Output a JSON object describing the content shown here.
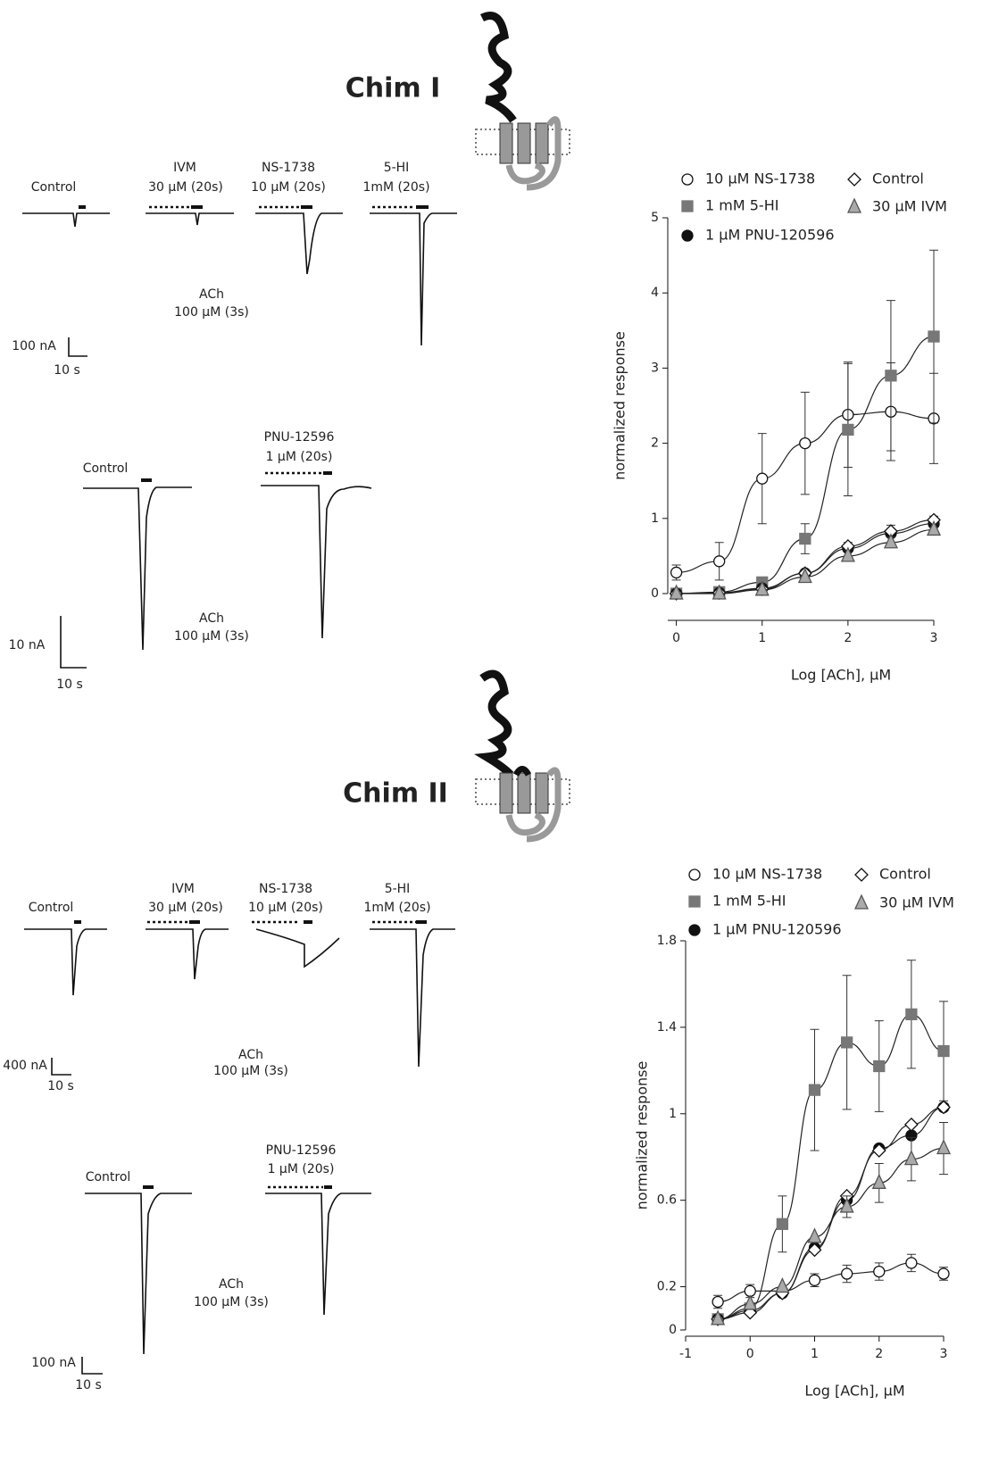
{
  "figure": {
    "sections": [
      {
        "texts": [
          "Chim I",
          "Control",
          "IVM",
          "30 µM (20s)",
          "NS-1738",
          "10 µM (20s)",
          "5-HI",
          "1mM (20s)",
          "ACh",
          "100 µM (3s)",
          "100 nA",
          "10 s",
          "Control",
          "PNU-12596",
          "1 µM (20s)",
          "ACh",
          "100 µM (3s)",
          "10 nA",
          "10 s"
        ]
      },
      {
        "texts": [
          "Chim II",
          "Control",
          "IVM",
          "30 µM (20s)",
          "NS-1738",
          "10 µM (20s)",
          "5-HI",
          "1mM (20s)",
          "ACh",
          "100 µM (3s)",
          "400 nA",
          "10 s",
          "Control",
          "PNU-12596",
          "1 µM (20s)",
          "ACh",
          "100 µM (3s)",
          "100 nA",
          "10 s"
        ]
      }
    ]
  },
  "chart_data": [
    {
      "type": "scatter",
      "xlabel": "Log [ACh],  µM",
      "ylabel": "normalized response",
      "x": [
        0,
        0.5,
        1,
        1.5,
        2,
        2.5,
        3
      ],
      "xlim": [
        -0.1,
        3
      ],
      "xticks": [
        0,
        1,
        2,
        3
      ],
      "ylim": [
        0,
        5
      ],
      "yticks": [
        0,
        1,
        2,
        3,
        4,
        5
      ],
      "lines": true,
      "series": [
        {
          "name": "10 µM NS-1738",
          "marker": "circle",
          "color": "#ffffff",
          "values": [
            0.28,
            0.43,
            1.53,
            2.0,
            2.38,
            2.42,
            2.33
          ],
          "errors": [
            0.1,
            0.25,
            0.6,
            0.68,
            0.7,
            0.65,
            0.6
          ]
        },
        {
          "name": "1 mM 5-HI",
          "marker": "square",
          "color": "#777777",
          "values": [
            0,
            0.02,
            0.15,
            0.73,
            2.18,
            2.9,
            3.42
          ],
          "errors": [
            null,
            null,
            0.05,
            0.2,
            0.88,
            1.0,
            1.15
          ]
        },
        {
          "name": "1 µM PNU-120596",
          "marker": "circle",
          "color": "#111111",
          "values": [
            0,
            0.01,
            0.07,
            0.27,
            0.6,
            0.8,
            0.93
          ],
          "errors": [
            null,
            null,
            null,
            null,
            null,
            null,
            null
          ]
        },
        {
          "name": "Control",
          "marker": "diamond",
          "color": "#ffffff",
          "values": [
            0,
            0.01,
            0.06,
            0.27,
            0.63,
            0.83,
            0.98
          ],
          "errors": [
            null,
            null,
            null,
            0.04,
            0.05,
            0.08,
            0.05
          ]
        },
        {
          "name": "30 µM IVM",
          "marker": "triangle",
          "color": "#aaaaaa",
          "values": [
            0,
            0,
            0.05,
            0.22,
            0.5,
            0.68,
            0.85
          ],
          "errors": [
            null,
            null,
            null,
            null,
            null,
            null,
            null
          ]
        }
      ]
    },
    {
      "type": "scatter",
      "xlabel": "Log [ACh],  µM",
      "ylabel": "normalized response",
      "x": [
        -0.5,
        0,
        0.5,
        1,
        1.5,
        2,
        2.5,
        3
      ],
      "xlim": [
        -1,
        3
      ],
      "xticks": [
        -1,
        0,
        1,
        2,
        3
      ],
      "ylim": [
        0,
        1.8
      ],
      "yticks": [
        0,
        0.2,
        0.6,
        1,
        1.4,
        1.8
      ],
      "lines": true,
      "series": [
        {
          "name": "10 µM NS-1738",
          "marker": "circle",
          "color": "#ffffff",
          "values": [
            0.13,
            0.18,
            0.18,
            0.23,
            0.26,
            0.27,
            0.31,
            0.26
          ],
          "errors": [
            0.03,
            0.03,
            null,
            0.03,
            0.04,
            0.04,
            0.04,
            0.03
          ]
        },
        {
          "name": "1 mM 5-HI",
          "marker": "square",
          "color": "#777777",
          "values": [
            0.05,
            0.1,
            0.49,
            1.11,
            1.33,
            1.22,
            1.46,
            1.29
          ],
          "errors": [
            null,
            null,
            0.13,
            0.28,
            0.31,
            0.21,
            0.25,
            0.23
          ]
        },
        {
          "name": "1 µM PNU-120596",
          "marker": "circle",
          "color": "#111111",
          "values": [
            0.05,
            0.09,
            0.17,
            0.38,
            0.6,
            0.84,
            0.9,
            1.03
          ],
          "errors": [
            null,
            null,
            null,
            null,
            null,
            null,
            null,
            null
          ]
        },
        {
          "name": "Control",
          "marker": "diamond",
          "color": "#ffffff",
          "values": [
            0.05,
            0.08,
            0.17,
            0.37,
            0.62,
            0.83,
            0.95,
            1.03
          ],
          "errors": [
            null,
            null,
            null,
            null,
            null,
            null,
            null,
            null
          ]
        },
        {
          "name": "30 µM IVM",
          "marker": "triangle",
          "color": "#aaaaaa",
          "values": [
            0.05,
            0.12,
            0.2,
            0.43,
            0.57,
            0.68,
            0.79,
            0.84
          ],
          "errors": [
            null,
            null,
            null,
            null,
            0.05,
            0.09,
            0.1,
            0.12
          ]
        }
      ]
    }
  ]
}
